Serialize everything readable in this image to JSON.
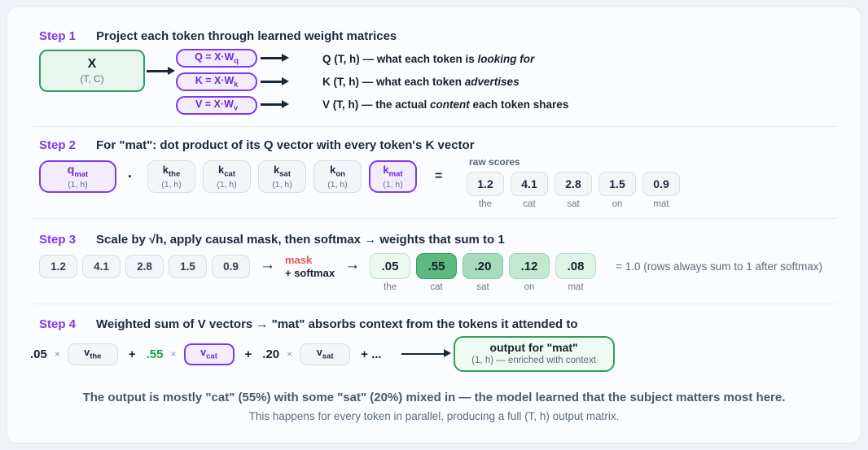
{
  "step1": {
    "label": "Step 1",
    "title": "Project each token through learned weight matrices",
    "x_box": {
      "name": "X",
      "shape": "(T, C)"
    },
    "matrices": [
      {
        "formula": "Q = X·W",
        "sub": "q"
      },
      {
        "formula": "K = X·W",
        "sub": "k"
      },
      {
        "formula": "V = X·W",
        "sub": "v"
      }
    ],
    "outputs": [
      {
        "prefix": "Q (T, h) — what each token is ",
        "italic": "looking for",
        "suffix": ""
      },
      {
        "prefix": "K (T, h) — what each token ",
        "italic": "advertises",
        "suffix": ""
      },
      {
        "prefix": "V (T, h) — the actual ",
        "italic": "content",
        "suffix": " each token shares"
      }
    ]
  },
  "step2": {
    "label": "Step 2",
    "title": "For \"mat\": dot product of its Q vector with every token's K vector",
    "q_box": {
      "symbol": "q",
      "sub": "mat",
      "shape": "(1, h)"
    },
    "dot": "·",
    "k_boxes": [
      {
        "symbol": "k",
        "sub": "the",
        "shape": "(1, h)"
      },
      {
        "symbol": "k",
        "sub": "cat",
        "shape": "(1, h)"
      },
      {
        "symbol": "k",
        "sub": "sat",
        "shape": "(1, h)"
      },
      {
        "symbol": "k",
        "sub": "on",
        "shape": "(1, h)"
      },
      {
        "symbol": "k",
        "sub": "mat",
        "shape": "(1, h)"
      }
    ],
    "equals": "=",
    "raw_scores_label": "raw scores",
    "scores": [
      {
        "value": "1.2",
        "token": "the"
      },
      {
        "value": "4.1",
        "token": "cat"
      },
      {
        "value": "2.8",
        "token": "sat"
      },
      {
        "value": "1.5",
        "token": "on"
      },
      {
        "value": "0.9",
        "token": "mat"
      }
    ]
  },
  "step3": {
    "label": "Step 3",
    "title": "Scale by √h, apply causal mask, then softmax → weights that sum to 1",
    "inputs": [
      "1.2",
      "4.1",
      "2.8",
      "1.5",
      "0.9"
    ],
    "arrow": "→",
    "mask_label": "mask",
    "softmax_label": "+ softmax",
    "weights": [
      {
        "value": ".05",
        "token": "the",
        "fill": "#edf8f1",
        "border": "#bde4cc"
      },
      {
        "value": ".55",
        "token": "cat",
        "fill": "#5cb97f",
        "border": "#2f9e5e"
      },
      {
        "value": ".20",
        "token": "sat",
        "fill": "#a6dcbd",
        "border": "#7ec9a0"
      },
      {
        "value": ".12",
        "token": "on",
        "fill": "#c3e8d1",
        "border": "#9bd5b4"
      },
      {
        "value": ".08",
        "token": "mat",
        "fill": "#dff3e7",
        "border": "#b7e2c8"
      }
    ],
    "sum_note": "= 1.0 (rows always sum to 1 after softmax)"
  },
  "step4": {
    "label": "Step 4",
    "title": "Weighted sum of V vectors → \"mat\" absorbs context from the tokens it attended to",
    "terms": [
      {
        "coef": ".05",
        "symbol": "v",
        "sub": "the"
      },
      {
        "coef": ".55",
        "symbol": "v",
        "sub": "cat"
      },
      {
        "coef": ".20",
        "symbol": "v",
        "sub": "sat"
      }
    ],
    "times": "×",
    "plus": "+",
    "ellipsis": "+ ...",
    "output_box": {
      "title": "output for \"mat\"",
      "subtitle": "(1, h) — enriched with context"
    }
  },
  "footer": {
    "line1": "The output is mostly \"cat\" (55%) with some \"sat\" (20%) mixed in — the model learned that the subject matters most here.",
    "line2": "This happens for every token in parallel, producing a full (T, h) output matrix."
  },
  "colors": {
    "accent_purple": "#7c3aed",
    "green": "#2f9e5e",
    "mask_red": "#e05555",
    "coef_green": "#17a34a"
  }
}
